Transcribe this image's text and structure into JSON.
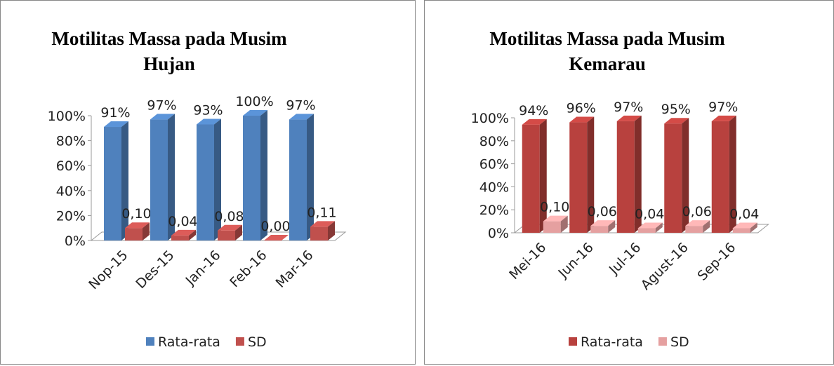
{
  "chart_data": [
    {
      "type": "bar3d",
      "title": "Motilitas Massa pada Musim Hujan",
      "categories": [
        "Nop-15",
        "Des-15",
        "Jan-16",
        "Feb-16",
        "Mar-16"
      ],
      "series": [
        {
          "name": "Rata-rata",
          "color": "#4f81bd",
          "values": [
            91,
            97,
            93,
            100,
            97
          ],
          "value_labels": [
            "91%",
            "97%",
            "93%",
            "100%",
            "97%"
          ]
        },
        {
          "name": "SD",
          "color": "#c0504d",
          "values": [
            10,
            4,
            8,
            0,
            11
          ],
          "value_labels": [
            "0,10",
            "0,04",
            "0,08",
            "0,00",
            "0,11"
          ]
        }
      ],
      "ylim": [
        0,
        100
      ],
      "yticks": [
        {
          "value": 0,
          "label": "0%"
        },
        {
          "value": 20,
          "label": "20%"
        },
        {
          "value": 40,
          "label": "40%"
        },
        {
          "value": 60,
          "label": "60%"
        },
        {
          "value": 80,
          "label": "80%"
        },
        {
          "value": 100,
          "label": "100%"
        }
      ],
      "legend": "bottom"
    },
    {
      "type": "bar3d",
      "title": "Motilitas Massa pada Musim Kemarau",
      "categories": [
        "Mei-16",
        "Jun-16",
        "Jul-16",
        "Agust-16",
        "Sep-16"
      ],
      "series": [
        {
          "name": "Rata-rata",
          "color": "#b8413e",
          "values": [
            94,
            96,
            97,
            95,
            97
          ],
          "value_labels": [
            "94%",
            "96%",
            "97%",
            "95%",
            "97%"
          ]
        },
        {
          "name": "SD",
          "color": "#e5a0a0",
          "values": [
            10,
            6,
            4,
            6,
            4
          ],
          "value_labels": [
            "0,10",
            "0,06",
            "0,04",
            "0,06",
            "0,04"
          ]
        }
      ],
      "ylim": [
        0,
        100
      ],
      "yticks": [
        {
          "value": 0,
          "label": "0%"
        },
        {
          "value": 20,
          "label": "20%"
        },
        {
          "value": 40,
          "label": "40%"
        },
        {
          "value": 60,
          "label": "60%"
        },
        {
          "value": 80,
          "label": "80%"
        },
        {
          "value": 100,
          "label": "100%"
        }
      ],
      "legend": "bottom"
    }
  ]
}
